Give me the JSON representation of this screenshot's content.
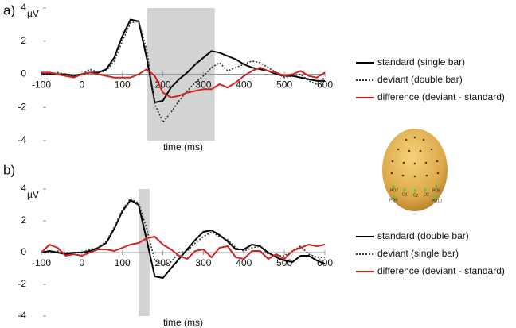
{
  "chart_data": [
    {
      "type": "line",
      "panel_label": "a)",
      "y_label": "µV",
      "x_label": "time (ms)",
      "xlim": [
        -100,
        600
      ],
      "ylim": [
        -4,
        4
      ],
      "xticks": [
        -100,
        0,
        100,
        200,
        300,
        400,
        500,
        600
      ],
      "yticks": [
        -4,
        -2,
        0,
        2,
        4
      ],
      "shaded_interval": [
        161,
        328
      ],
      "shade_color": "#d3d3d3",
      "legend": "right",
      "x": [
        -100,
        -80,
        -60,
        -40,
        -20,
        0,
        20,
        40,
        60,
        80,
        100,
        120,
        140,
        160,
        180,
        200,
        220,
        240,
        260,
        280,
        300,
        320,
        340,
        360,
        380,
        400,
        420,
        440,
        460,
        480,
        500,
        520,
        540,
        560,
        580,
        600
      ],
      "series": [
        {
          "name": "standard (single bar)",
          "color": "#000000",
          "line_style": "solid",
          "values": [
            0,
            0,
            0,
            0,
            -0.1,
            0,
            0.1,
            0.1,
            0.3,
            1.0,
            2.3,
            3.3,
            3.2,
            1.0,
            -1.7,
            -1.6,
            -0.8,
            -0.3,
            0.1,
            0.6,
            1.0,
            1.4,
            1.3,
            1.1,
            0.9,
            0.6,
            0.4,
            0.3,
            0.2,
            0,
            -0.1,
            -0.1,
            -0.2,
            -0.3,
            -0.4,
            -0.4
          ]
        },
        {
          "name": "deviant (double bar)",
          "color": "#333333",
          "line_style": "dotted",
          "values": [
            0,
            0,
            0.1,
            0,
            -0.1,
            0,
            0.3,
            0.1,
            0.2,
            0.8,
            2.0,
            3.1,
            3.2,
            1.5,
            -1.8,
            -2.9,
            -2.3,
            -1.6,
            -1.0,
            -0.5,
            -0.1,
            0.4,
            0.7,
            0.2,
            0.4,
            0.6,
            0.8,
            0.7,
            0.4,
            0.1,
            -0.2,
            -0.1,
            0,
            -0.4,
            -0.6,
            -0.2
          ]
        },
        {
          "name": "difference (deviant - standard)",
          "color": "#d42020",
          "line_style": "solid",
          "values": [
            0.1,
            0.1,
            0,
            -0.1,
            -0.2,
            0,
            0.1,
            0,
            -0.1,
            -0.2,
            -0.2,
            -0.2,
            0,
            0.3,
            -0.1,
            -1.1,
            -1.4,
            -1.3,
            -1.1,
            -1.0,
            -0.9,
            -0.9,
            -0.6,
            -0.8,
            -0.5,
            -0.1,
            0.2,
            0.4,
            0.2,
            0.1,
            -0.1,
            0,
            0.2,
            -0.1,
            -0.2,
            0.1
          ]
        }
      ]
    },
    {
      "type": "line",
      "panel_label": "b)",
      "y_label": "µV",
      "x_label": "time (ms)",
      "xlim": [
        -100,
        600
      ],
      "ylim": [
        -4,
        4
      ],
      "xticks": [
        -100,
        0,
        100,
        200,
        300,
        400,
        500,
        600
      ],
      "yticks": [
        -4,
        -2,
        0,
        2,
        4
      ],
      "shaded_interval": [
        140,
        167
      ],
      "shade_color": "#d3d3d3",
      "legend": "right",
      "x": [
        -100,
        -80,
        -60,
        -40,
        -20,
        0,
        20,
        40,
        60,
        80,
        100,
        120,
        140,
        160,
        180,
        200,
        220,
        240,
        260,
        280,
        300,
        320,
        340,
        360,
        380,
        400,
        420,
        440,
        460,
        480,
        500,
        520,
        540,
        560,
        580,
        600
      ],
      "series": [
        {
          "name": "standard (double bar)",
          "color": "#000000",
          "line_style": "solid",
          "values": [
            0,
            0.1,
            0,
            -0.1,
            0,
            0,
            0.1,
            0.3,
            0.6,
            1.5,
            2.6,
            3.3,
            3.0,
            0.8,
            -1.5,
            -1.6,
            -1.0,
            -0.4,
            0.2,
            0.8,
            1.3,
            1.4,
            1.1,
            0.7,
            0.2,
            0.2,
            0.5,
            0.4,
            0,
            -0.3,
            -0.5,
            -0.6,
            -0.2,
            -0.2,
            -0.5,
            -0.7
          ]
        },
        {
          "name": "deviant (single bar)",
          "color": "#333333",
          "line_style": "dotted",
          "values": [
            0,
            0,
            0.1,
            0,
            0,
            0,
            0.2,
            0.3,
            0.7,
            1.6,
            2.7,
            3.4,
            3.1,
            1.5,
            -0.5,
            -0.8,
            -0.6,
            0,
            0.1,
            0.6,
            1.0,
            1.3,
            1.0,
            0.8,
            0.3,
            0.1,
            0.3,
            0.4,
            -0.1,
            -0.2,
            -0.2,
            0.1,
            0.4,
            -0.1,
            -0.3,
            -0.3
          ]
        },
        {
          "name": "difference (deviant - standard)",
          "color": "#d42020",
          "line_style": "solid",
          "values": [
            0,
            0.5,
            0.3,
            -0.2,
            -0.1,
            -0.2,
            0,
            0.2,
            0.2,
            0.1,
            0.3,
            0.5,
            0.6,
            0.9,
            1.0,
            0.5,
            0.2,
            -0.2,
            -0.4,
            0.1,
            0.2,
            -0.3,
            0.3,
            0.4,
            -0.3,
            -0.4,
            0.1,
            0.1,
            -0.4,
            -0.1,
            -0.4,
            0.1,
            0.3,
            0.5,
            0.4,
            0.5
          ]
        }
      ]
    }
  ],
  "electrode_labels": [
    "PO7",
    "O1",
    "Oz",
    "O2",
    "PO8",
    "PO9",
    "PO10"
  ]
}
